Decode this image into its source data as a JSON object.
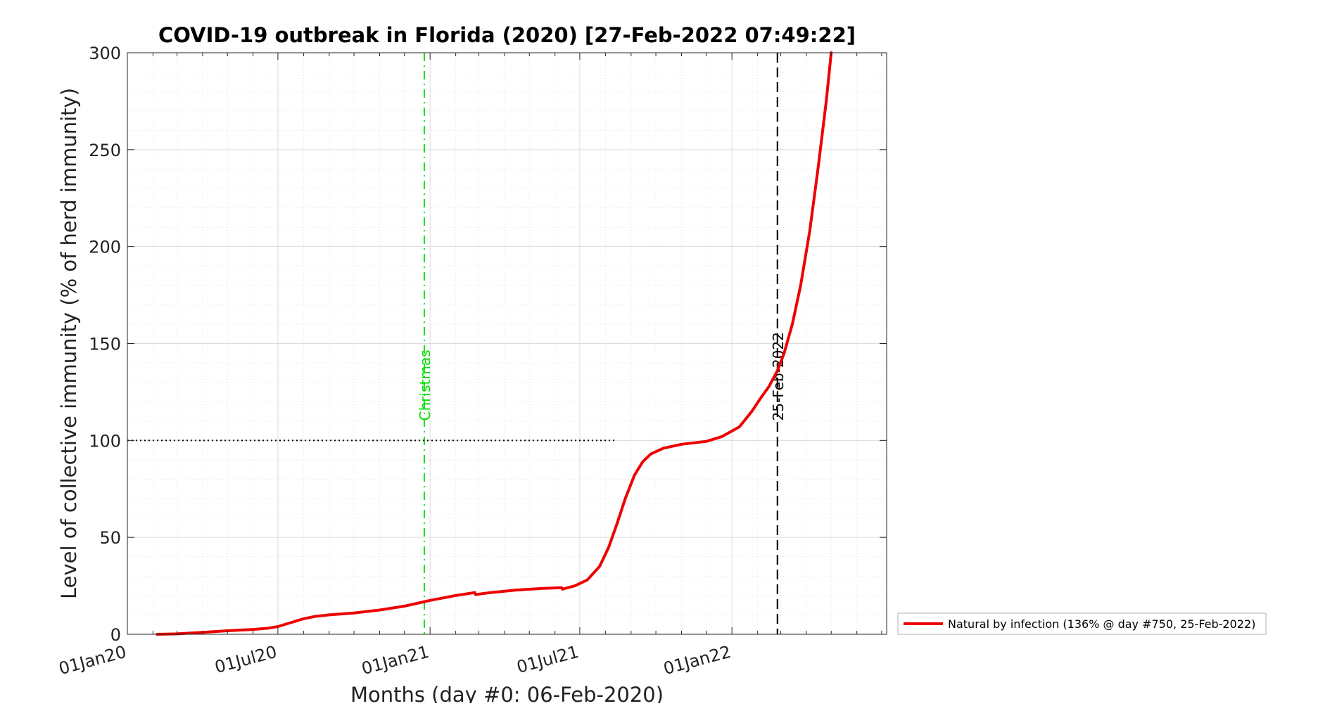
{
  "chart_data": {
    "type": "line",
    "title": "COVID-19 outbreak in Florida (2020) [27-Feb-2022 07:49:22]",
    "xlabel": "Months (day #0: 06-Feb-2020)",
    "ylabel": "Level of collective immunity (% of herd immunity)",
    "xlim": [
      "2020-01-01",
      "2022-07-07"
    ],
    "ylim": [
      0,
      300
    ],
    "y_ticks": [
      0,
      50,
      100,
      150,
      200,
      250,
      300
    ],
    "x_ticks": [
      {
        "date": "2020-01-01",
        "label": "01Jan20"
      },
      {
        "date": "2020-07-01",
        "label": "01Jul20"
      },
      {
        "date": "2021-01-01",
        "label": "01Jan21"
      },
      {
        "date": "2021-07-01",
        "label": "01Jul21"
      },
      {
        "date": "2022-01-01",
        "label": "01Jan22"
      }
    ],
    "grid": true,
    "legend_position": "outside-right",
    "reference_lines": [
      {
        "kind": "vertical",
        "date": "2020-12-25",
        "label": "Christmas",
        "color": "#00dd00",
        "style": "dash-dot"
      },
      {
        "kind": "vertical",
        "date": "2022-02-25",
        "label": "25-Feb-2022",
        "color": "#000000",
        "style": "dashed"
      },
      {
        "kind": "horizontal",
        "y": 100,
        "from": "2020-01-01",
        "to": "2021-08-15",
        "color": "#000000",
        "style": "dotted"
      }
    ],
    "series": [
      {
        "name": "Natural by infection (136% @ day #750, 25-Feb-2022)",
        "color": "#ee0000",
        "points": [
          [
            "2020-02-06",
            0
          ],
          [
            "2020-03-01",
            0.2
          ],
          [
            "2020-04-01",
            1
          ],
          [
            "2020-05-01",
            1.8
          ],
          [
            "2020-06-01",
            2.5
          ],
          [
            "2020-06-20",
            3.2
          ],
          [
            "2020-07-01",
            4
          ],
          [
            "2020-07-15",
            5.8
          ],
          [
            "2020-08-01",
            8
          ],
          [
            "2020-08-15",
            9.2
          ],
          [
            "2020-09-01",
            10
          ],
          [
            "2020-10-01",
            11
          ],
          [
            "2020-11-01",
            12.5
          ],
          [
            "2020-12-01",
            14.5
          ],
          [
            "2021-01-01",
            17.5
          ],
          [
            "2021-02-01",
            20
          ],
          [
            "2021-02-24",
            21.5
          ],
          [
            "2021-02-25",
            20.5
          ],
          [
            "2021-03-15",
            21.5
          ],
          [
            "2021-04-15",
            22.8
          ],
          [
            "2021-05-15",
            23.6
          ],
          [
            "2021-06-09",
            24
          ],
          [
            "2021-06-10",
            23.3
          ],
          [
            "2021-06-25",
            25
          ],
          [
            "2021-07-10",
            28
          ],
          [
            "2021-07-25",
            35
          ],
          [
            "2021-08-05",
            45
          ],
          [
            "2021-08-15",
            57
          ],
          [
            "2021-08-25",
            70
          ],
          [
            "2021-09-05",
            82
          ],
          [
            "2021-09-15",
            89
          ],
          [
            "2021-09-25",
            93
          ],
          [
            "2021-10-10",
            96
          ],
          [
            "2021-11-01",
            98
          ],
          [
            "2021-12-01",
            99.5
          ],
          [
            "2021-12-20",
            102
          ],
          [
            "2022-01-10",
            107
          ],
          [
            "2022-01-25",
            115
          ],
          [
            "2022-02-05",
            122
          ],
          [
            "2022-02-15",
            128
          ],
          [
            "2022-02-25",
            136
          ],
          [
            "2022-03-05",
            145
          ],
          [
            "2022-03-15",
            160
          ],
          [
            "2022-03-25",
            180
          ],
          [
            "2022-04-05",
            208
          ],
          [
            "2022-04-15",
            240
          ],
          [
            "2022-04-25",
            275
          ],
          [
            "2022-05-01",
            300
          ]
        ]
      }
    ]
  }
}
